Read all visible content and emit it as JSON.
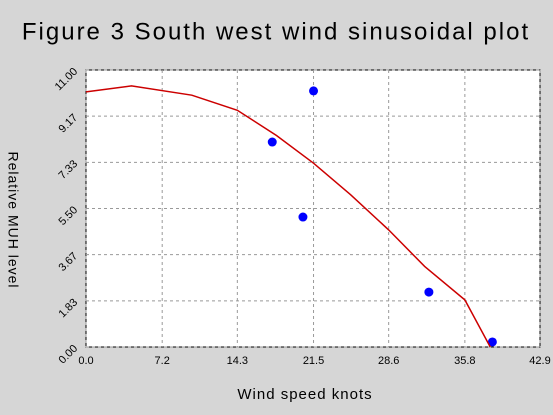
{
  "chart_data": {
    "type": "scatter",
    "title": "Figure 3 South west wind sinusoidal plot",
    "x_label": "Wind speed knots",
    "y_label": "Relative MUH level",
    "xlim": [
      0,
      42.9
    ],
    "xticks": [
      {
        "value": 0,
        "label": "0.0"
      },
      7.2,
      14.3,
      21.5,
      28.6,
      35.8,
      42.9
    ],
    "ylim": [
      0,
      11
    ],
    "yticks": [
      {
        "value": 0,
        "label": "0.00"
      },
      1.83,
      3.67,
      {
        "value": 5.5,
        "label": "5.50"
      },
      7.33,
      9.17,
      {
        "value": 11,
        "label": "11.00"
      }
    ],
    "grid": true,
    "series": [
      {
        "type": "scatter",
        "color": "#0000ff",
        "x": [
          17.6,
          21.5,
          20.5,
          32.4,
          38.4
        ],
        "values": [
          8.14,
          10.17,
          5.16,
          2.18,
          0.2
        ]
      },
      {
        "type": "line",
        "color": "#cc0000",
        "x": [
          0,
          4.3,
          10,
          14.3,
          18,
          21.5,
          25,
          28.6,
          32,
          35.8,
          38.2
        ],
        "values": [
          10.13,
          10.37,
          10.0,
          9.4,
          8.4,
          7.3,
          6.05,
          4.65,
          3.2,
          1.87,
          0
        ]
      }
    ]
  }
}
